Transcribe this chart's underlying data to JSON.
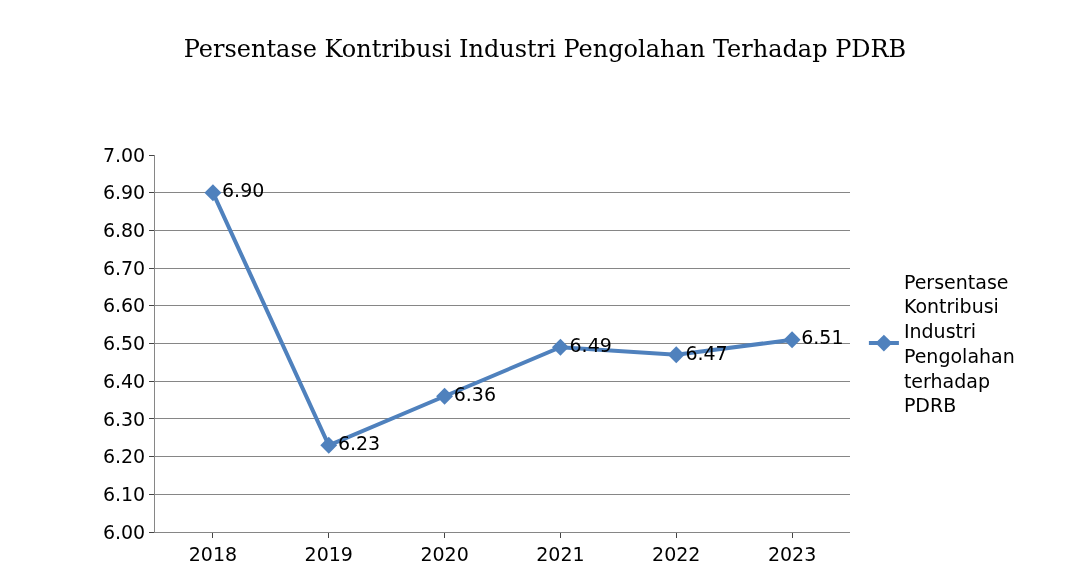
{
  "chart_data": {
    "type": "line",
    "title": "Persentase Kontribusi Industri Pengolahan Terhadap PDRB",
    "categories": [
      "2018",
      "2019",
      "2020",
      "2021",
      "2022",
      "2023"
    ],
    "series": [
      {
        "name": "Persentase Kontribusi Industri Pengolahan terhadap PDRB",
        "color": "#4f81bd",
        "values": [
          6.9,
          6.23,
          6.36,
          6.49,
          6.47,
          6.51
        ],
        "value_labels": [
          "6.90",
          "6.23",
          "6.36",
          "6.49",
          "6.47",
          "6.51"
        ]
      }
    ],
    "ylim": [
      6.0,
      7.0
    ],
    "yticks": [
      {
        "value": 6.0,
        "label": "6.00"
      },
      {
        "value": 6.1,
        "label": "6.10"
      },
      {
        "value": 6.2,
        "label": "6.20"
      },
      {
        "value": 6.3,
        "label": "6.30"
      },
      {
        "value": 6.4,
        "label": "6.40"
      },
      {
        "value": 6.5,
        "label": "6.50"
      },
      {
        "value": 6.6,
        "label": "6.60"
      },
      {
        "value": 6.7,
        "label": "6.70"
      },
      {
        "value": 6.8,
        "label": "6.80"
      },
      {
        "value": 6.9,
        "label": "6.90"
      },
      {
        "value": 7.0,
        "label": "7.00"
      }
    ],
    "grid": "y",
    "legend": "right",
    "marker": "diamond",
    "line_style": "solid"
  }
}
